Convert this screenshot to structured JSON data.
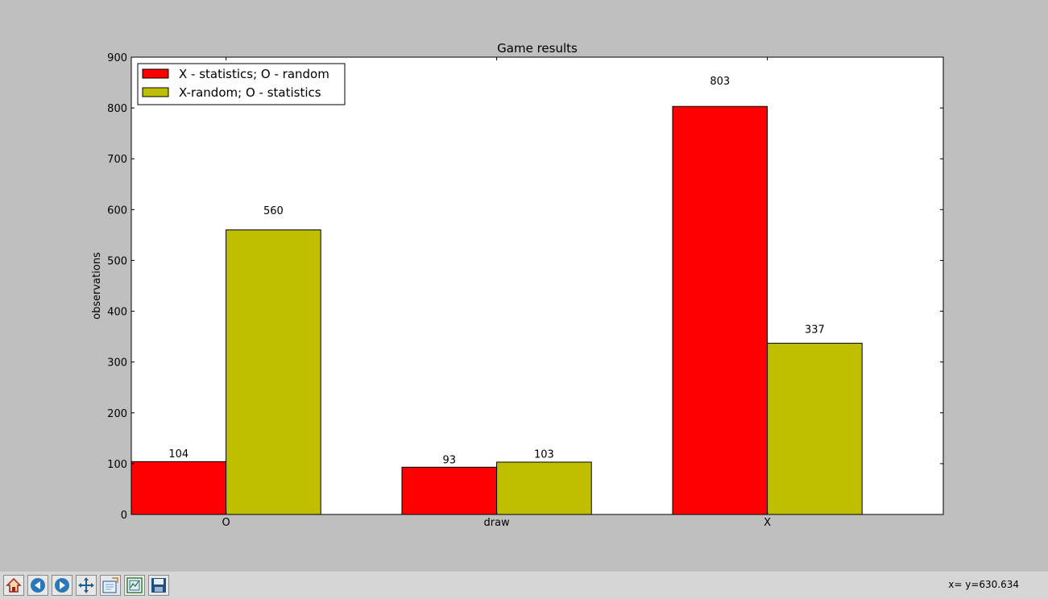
{
  "chart_data": {
    "type": "bar",
    "title": "Game results",
    "xlabel": "",
    "ylabel": "observations",
    "categories": [
      "O",
      "draw",
      "X"
    ],
    "series": [
      {
        "name": "X - statistics; O - random",
        "color": "#ff0000",
        "values": [
          104,
          93,
          803
        ]
      },
      {
        "name": "X-random; O - statistics",
        "color": "#bfbf00",
        "values": [
          560,
          103,
          337
        ]
      }
    ],
    "ylim": [
      0,
      900
    ],
    "yticks": [
      0,
      100,
      200,
      300,
      400,
      500,
      600,
      700,
      800,
      900
    ],
    "xlim": [
      0,
      3
    ],
    "legend_position": "upper-left",
    "grid": false
  },
  "toolbar": {
    "buttons": [
      {
        "name": "home-button",
        "icon": "home-icon"
      },
      {
        "name": "back-button",
        "icon": "back-arrow-icon"
      },
      {
        "name": "forward-button",
        "icon": "forward-arrow-icon"
      },
      {
        "name": "pan-button",
        "icon": "move-icon"
      },
      {
        "name": "zoom-button",
        "icon": "zoom-rect-icon"
      },
      {
        "name": "subplots-button",
        "icon": "subplots-icon"
      },
      {
        "name": "save-button",
        "icon": "floppy-icon"
      }
    ],
    "coords_text": "x= y=630.634"
  }
}
